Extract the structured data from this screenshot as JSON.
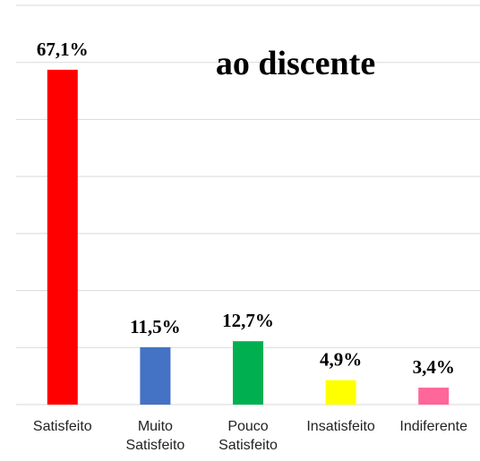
{
  "chart_data": {
    "type": "bar",
    "title": "ao discente",
    "categories": [
      "Satisfeito",
      "Muito Satisfeito",
      "Pouco Satisfeito",
      "Insatisfeito",
      "Indiferente"
    ],
    "values": [
      67.1,
      11.5,
      12.7,
      4.9,
      3.4
    ],
    "value_labels": [
      "67,1%",
      "11,5%",
      "12,7%",
      "4,9%",
      "3,4%"
    ],
    "colors": [
      "#ff0000",
      "#4472c4",
      "#00b050",
      "#ffff00",
      "#ff6699"
    ],
    "ylim": [
      0,
      80
    ]
  }
}
